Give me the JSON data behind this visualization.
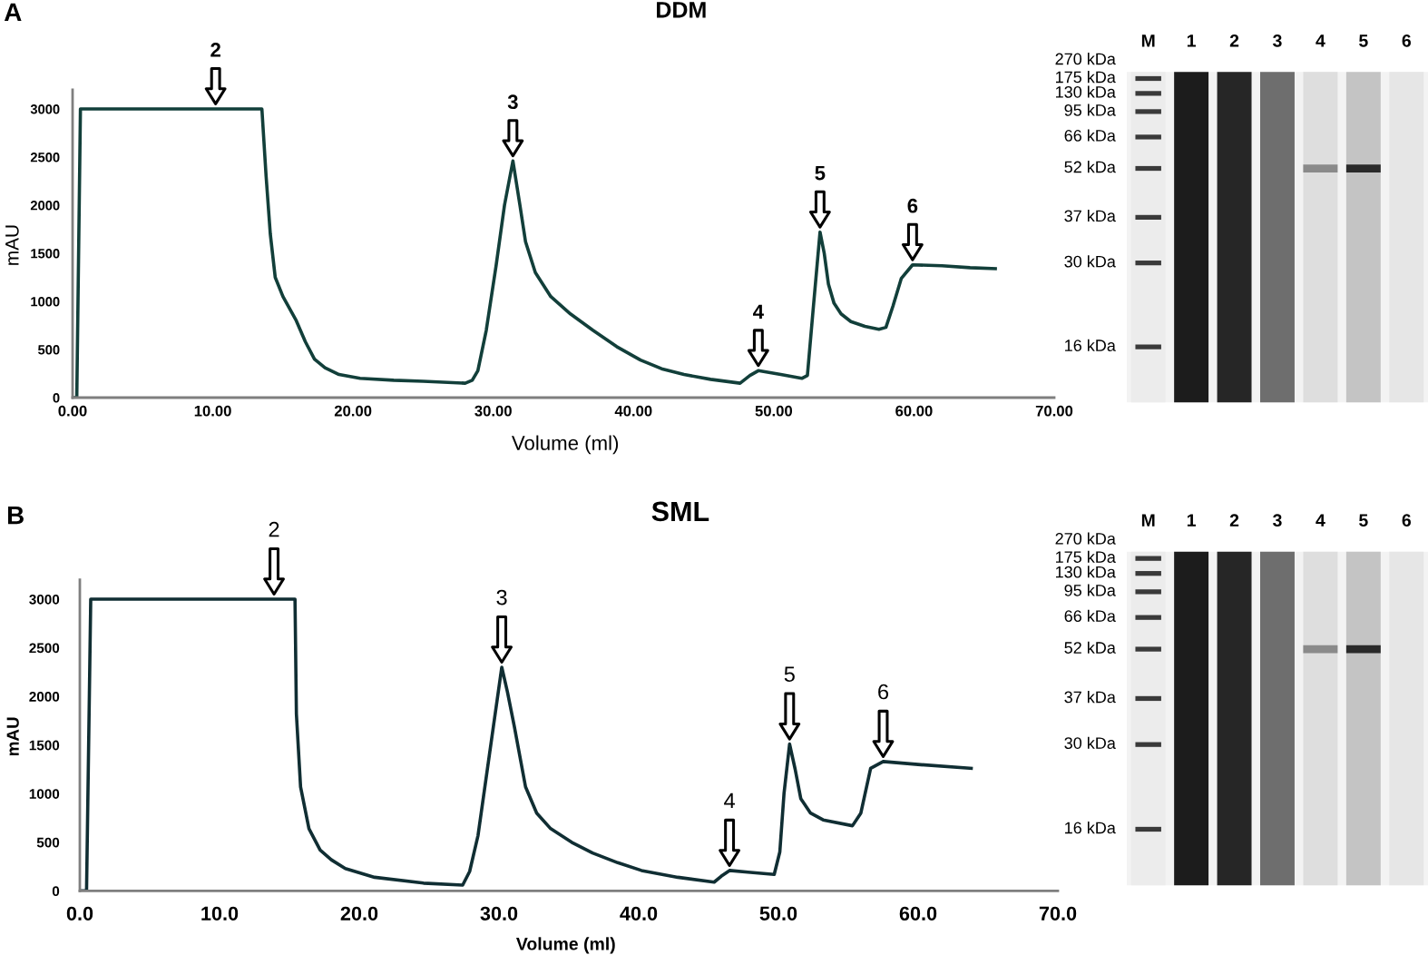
{
  "chart_data": [
    {
      "type": "line",
      "title": "DDM",
      "xlabel": "Volume (ml)",
      "ylabel": "mAU",
      "x": [
        0,
        0.3,
        0.56,
        5,
        10,
        13.5,
        13.8,
        14.1,
        14.45,
        15.0,
        15.95,
        16.6,
        17.25,
        18.0,
        19.0,
        20.5,
        22.9,
        25.0,
        28.0,
        28.5,
        28.9,
        29.5,
        30.2,
        30.8,
        31.4,
        31.9,
        32.3,
        33.0,
        34.1,
        35.5,
        37.1,
        38.8,
        40.5,
        42.0,
        43.6,
        45.5,
        47.6,
        48.3,
        48.9,
        50.5,
        52.0,
        52.4,
        52.8,
        53.3,
        53.6,
        53.9,
        54.3,
        54.8,
        55.5,
        56.5,
        57.5,
        58.0,
        58.5,
        59.1,
        59.9,
        62.0,
        64.0,
        65.8
      ],
      "series": [
        {
          "color": "#123f3a",
          "values": [
            0,
            0,
            3000,
            3000,
            3000,
            3000,
            2300,
            1700,
            1250,
            1050,
            800,
            580,
            400,
            310,
            240,
            200,
            180,
            170,
            150,
            180,
            280,
            700,
            1370,
            2000,
            2460,
            2000,
            1620,
            1300,
            1050,
            870,
            700,
            530,
            390,
            300,
            240,
            190,
            150,
            230,
            280,
            240,
            200,
            230,
            900,
            1720,
            1500,
            1180,
            980,
            870,
            790,
            740,
            710,
            730,
            950,
            1240,
            1380,
            1370,
            1350,
            1340
          ]
        }
      ],
      "xlim": [
        0,
        70
      ],
      "ylim": [
        0,
        3200
      ],
      "xticks": [
        {
          "value": 0,
          "label": "0.00"
        },
        {
          "value": 10,
          "label": "10.00"
        },
        {
          "value": 20,
          "label": "20.00"
        },
        {
          "value": 30,
          "label": "30.00"
        },
        {
          "value": 40,
          "label": "40.00"
        },
        {
          "value": 50,
          "label": "50.00"
        },
        {
          "value": 60,
          "label": "60.00"
        },
        {
          "value": 70,
          "label": "70.00"
        }
      ],
      "yticks": [
        0,
        500,
        1000,
        1500,
        2000,
        2500,
        3000
      ],
      "annotations": [
        "A",
        {
          "text": "2",
          "x": 10.2,
          "y": 3000
        },
        {
          "text": "3",
          "x": 31.4,
          "y": 2460
        },
        {
          "text": "4",
          "x": 48.9,
          "y": 280
        },
        {
          "text": "5",
          "x": 53.3,
          "y": 1720
        },
        {
          "text": "6",
          "x": 59.9,
          "y": 1380
        },
        "M",
        "1",
        "2",
        "3",
        "4",
        "5",
        "6",
        "270 kDa",
        "175 kDa",
        "130 kDa",
        "95 kDa",
        "66 kDa",
        "52 kDa",
        "37 kDa",
        "30 kDa",
        "16 kDa"
      ]
    },
    {
      "type": "line",
      "title": "SML",
      "xlabel": "Volume (ml)",
      "ylabel": "mAU",
      "x": [
        0,
        0.48,
        0.78,
        5,
        10,
        15.4,
        15.5,
        15.8,
        16.4,
        17.2,
        18.0,
        19.0,
        21.1,
        24.6,
        27.4,
        27.9,
        28.5,
        29.6,
        30.2,
        30.6,
        31.1,
        31.9,
        32.7,
        33.7,
        35.2,
        36.7,
        38.5,
        40.2,
        42.8,
        45.4,
        45.9,
        46.5,
        48.0,
        49.7,
        50.1,
        50.4,
        50.8,
        51.2,
        51.6,
        52.3,
        53.2,
        55.3,
        55.9,
        56.6,
        57.5,
        60.0,
        63.8
      ],
      "series": [
        {
          "color": "#102e33",
          "values": [
            0,
            0,
            3000,
            3000,
            3000,
            3000,
            1820,
            1070,
            640,
            420,
            320,
            230,
            140,
            80,
            60,
            200,
            570,
            1690,
            2300,
            2050,
            1690,
            1070,
            800,
            640,
            500,
            390,
            290,
            210,
            140,
            90,
            150,
            210,
            190,
            170,
            400,
            1000,
            1510,
            1250,
            950,
            800,
            730,
            670,
            800,
            1260,
            1330,
            1300,
            1260
          ]
        }
      ],
      "xlim": [
        0,
        70
      ],
      "ylim": [
        0,
        3200
      ],
      "xticks": [
        {
          "value": 0,
          "label": "0.0"
        },
        {
          "value": 10,
          "label": "10.0"
        },
        {
          "value": 20,
          "label": "20.0"
        },
        {
          "value": 30,
          "label": "30.0"
        },
        {
          "value": 40,
          "label": "40.0"
        },
        {
          "value": 50,
          "label": "50.0"
        },
        {
          "value": 60,
          "label": "60.0"
        },
        {
          "value": 70,
          "label": "70.0"
        }
      ],
      "yticks": [
        0,
        500,
        1000,
        1500,
        2000,
        2500,
        3000
      ],
      "annotations": [
        "B",
        {
          "text": "2",
          "x": 13.9,
          "y": 3000
        },
        {
          "text": "3",
          "x": 30.2,
          "y": 2300
        },
        {
          "text": "4",
          "x": 46.5,
          "y": 210
        },
        {
          "text": "5",
          "x": 50.8,
          "y": 1510
        },
        {
          "text": "6",
          "x": 57.5,
          "y": 1330
        },
        "M",
        "1",
        "2",
        "3",
        "4",
        "5",
        "6",
        "270 kDa",
        "175 kDa",
        "130 kDa",
        "95 kDa",
        "66 kDa",
        "52 kDa",
        "37 kDa",
        "30 kDa",
        "16 kDa"
      ]
    }
  ]
}
